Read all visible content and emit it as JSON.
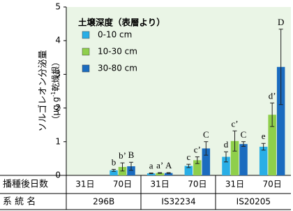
{
  "chart_data": {
    "type": "bar",
    "ylabel": [
      "ソルゴレオン分泌量",
      "（μg g",
      "-1",
      "乾燥根）"
    ],
    "legend_title": "土壌深度（表層より）",
    "categories": [
      "31日",
      "70日",
      "31日",
      "70日",
      "31日",
      "70日"
    ],
    "groups": [
      "296B",
      "IS32234",
      "IS20205"
    ],
    "row_labels": [
      "播種後日数",
      "系 統 名"
    ],
    "ylim": [
      0,
      5
    ],
    "yticks": [
      0,
      1,
      2,
      3,
      4,
      5
    ],
    "series": [
      {
        "name": "0-10 cm",
        "color": "#29aee6",
        "values": [
          null,
          0.15,
          0.06,
          0.28,
          0.55,
          0.85
        ],
        "errors": [
          null,
          0.03,
          0.01,
          0.05,
          0.15,
          0.1
        ],
        "labels": [
          null,
          "b",
          "a",
          "c",
          "d",
          "e"
        ]
      },
      {
        "name": "10-30 cm",
        "color": "#8fcf4b",
        "values": [
          null,
          0.25,
          0.07,
          0.45,
          1.02,
          1.8
        ],
        "errors": [
          null,
          0.12,
          0.01,
          0.1,
          0.3,
          0.35
        ],
        "labels": [
          null,
          "b’",
          "a’",
          "c’",
          "c’",
          "d’"
        ]
      },
      {
        "name": "30-80 cm",
        "color": "#1b6cbf",
        "values": [
          null,
          0.27,
          0.07,
          0.8,
          0.93,
          3.22
        ],
        "errors": [
          null,
          0.12,
          0.01,
          0.2,
          0.07,
          1.12
        ],
        "labels": [
          null,
          "B",
          "A",
          "C",
          "C",
          "D"
        ]
      }
    ]
  }
}
